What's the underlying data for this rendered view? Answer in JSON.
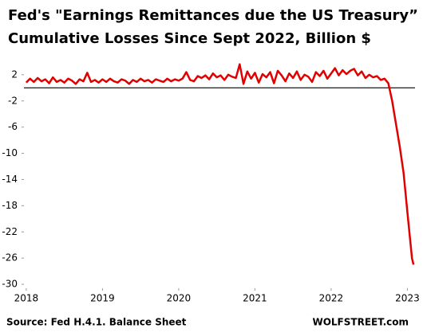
{
  "chart_data": {
    "type": "line",
    "title": [
      "Fed's \"Earnings Remittances due the US Treasury”",
      "Cumulative Losses Since Sept 2022, Billion $"
    ],
    "source": "Source: Fed H.4.1. Balance Sheet",
    "credit": "WOLFSTREET.com",
    "color": "#e00000",
    "hline": 0,
    "x": [
      2018,
      2018.05,
      2018.1,
      2018.15,
      2018.2,
      2018.25,
      2018.3,
      2018.35,
      2018.4,
      2018.45,
      2018.5,
      2018.55,
      2018.6,
      2018.65,
      2018.7,
      2018.75,
      2018.8,
      2018.85,
      2018.9,
      2018.95,
      2019,
      2019.05,
      2019.1,
      2019.15,
      2019.2,
      2019.25,
      2019.3,
      2019.35,
      2019.4,
      2019.45,
      2019.5,
      2019.55,
      2019.6,
      2019.65,
      2019.7,
      2019.75,
      2019.8,
      2019.85,
      2019.9,
      2019.95,
      2020,
      2020.05,
      2020.1,
      2020.15,
      2020.2,
      2020.25,
      2020.3,
      2020.35,
      2020.4,
      2020.45,
      2020.5,
      2020.55,
      2020.6,
      2020.65,
      2020.7,
      2020.75,
      2020.8,
      2020.85,
      2020.9,
      2020.95,
      2021,
      2021.05,
      2021.1,
      2021.15,
      2021.2,
      2021.25,
      2021.3,
      2021.35,
      2021.4,
      2021.45,
      2021.5,
      2021.55,
      2021.6,
      2021.65,
      2021.7,
      2021.75,
      2021.8,
      2021.85,
      2021.9,
      2021.95,
      2022,
      2022.05,
      2022.1,
      2022.15,
      2022.2,
      2022.25,
      2022.3,
      2022.35,
      2022.4,
      2022.45,
      2022.5,
      2022.55,
      2022.6,
      2022.65,
      2022.7,
      2022.75,
      2022.8,
      2022.85,
      2022.9,
      2022.95,
      2023,
      2023.03,
      2023.06,
      2023.08
    ],
    "values": [
      0.8,
      1.4,
      0.9,
      1.5,
      1.0,
      1.3,
      0.7,
      1.6,
      0.9,
      1.2,
      0.8,
      1.4,
      1.1,
      0.6,
      1.3,
      1.0,
      2.3,
      0.9,
      1.2,
      0.8,
      1.3,
      0.9,
      1.4,
      1.0,
      0.8,
      1.3,
      1.1,
      0.6,
      1.2,
      0.9,
      1.4,
      1.0,
      1.2,
      0.8,
      1.3,
      1.1,
      0.9,
      1.4,
      1.0,
      1.3,
      1.1,
      1.4,
      2.4,
      1.2,
      1.0,
      1.8,
      1.5,
      1.9,
      1.3,
      2.2,
      1.6,
      1.9,
      1.2,
      2.0,
      1.7,
      1.5,
      3.6,
      0.6,
      2.5,
      1.4,
      2.3,
      0.8,
      2.1,
      1.6,
      2.4,
      0.7,
      2.6,
      1.9,
      1.0,
      2.2,
      1.5,
      2.5,
      1.2,
      2.0,
      1.7,
      0.9,
      2.4,
      1.8,
      2.6,
      1.4,
      2.2,
      3.0,
      1.9,
      2.7,
      2.1,
      2.6,
      2.9,
      1.9,
      2.5,
      1.5,
      2.0,
      1.6,
      1.8,
      1.2,
      1.4,
      0.7,
      -2,
      -5.5,
      -9,
      -13,
      -19,
      -22.5,
      -26,
      -27
    ],
    "xlim": [
      2017.97,
      2023.1
    ],
    "xticks": [
      2018,
      2019,
      2020,
      2021,
      2022,
      2023
    ],
    "ylim": [
      -30.6,
      4.9
    ],
    "yticks": [
      2,
      -2,
      -6,
      -10,
      -14,
      -18,
      -22,
      -26,
      -30
    ]
  }
}
